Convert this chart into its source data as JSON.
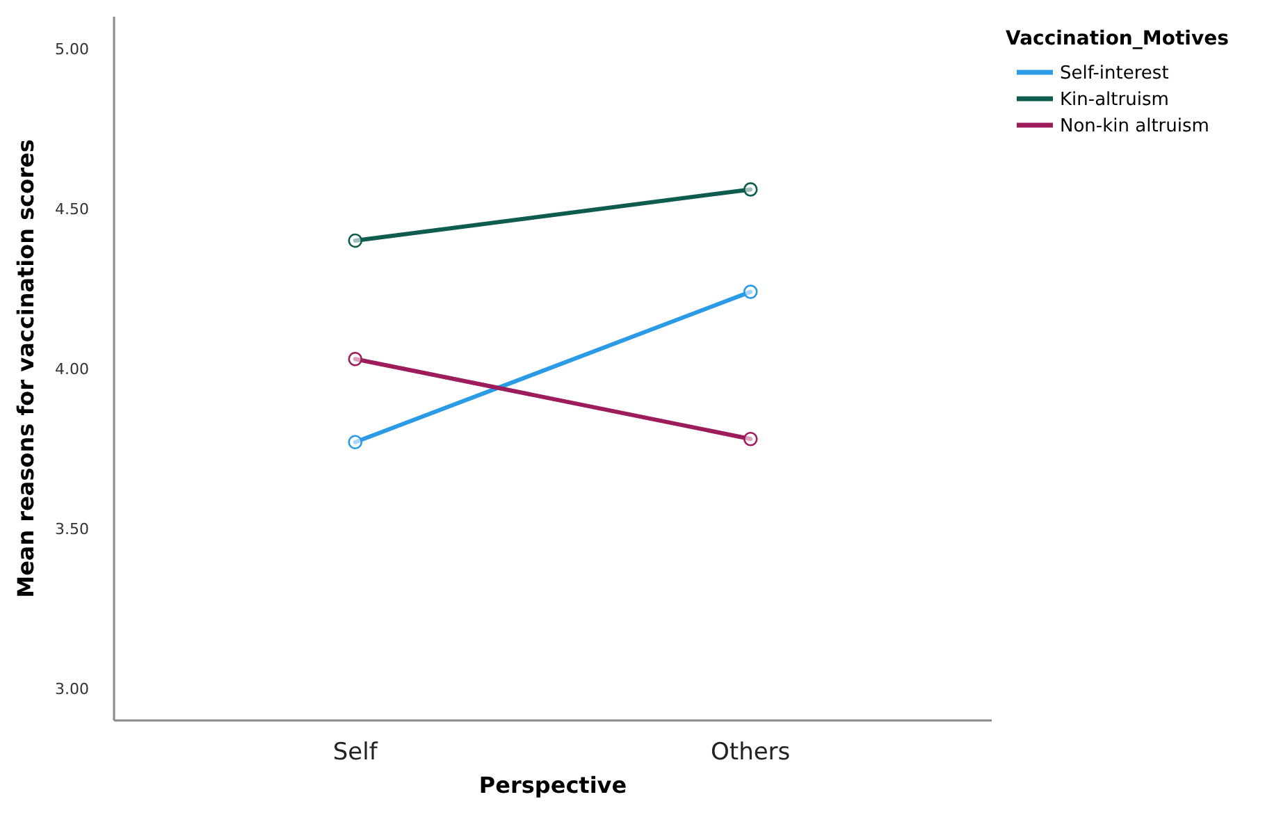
{
  "chart_data": {
    "type": "line",
    "xlabel": "Perspective",
    "ylabel": "Mean reasons for vaccination scores",
    "legend_title": "Vaccination_Motives",
    "categories": [
      "Self",
      "Others"
    ],
    "series": [
      {
        "name": "Self-interest",
        "color": "#2b9be6",
        "values": [
          3.77,
          4.24
        ]
      },
      {
        "name": "Kin-altruism",
        "color": "#0e5c4e",
        "values": [
          4.4,
          4.56
        ]
      },
      {
        "name": "Non-kin altruism",
        "color": "#9c1c5c",
        "values": [
          4.03,
          3.78
        ]
      }
    ],
    "ylim": [
      2.9,
      5.1
    ],
    "yticks": [
      {
        "value": 3,
        "label": "3.00"
      },
      {
        "value": 3.5,
        "label": "3.50"
      },
      {
        "value": 4,
        "label": "4.00"
      },
      {
        "value": 4.5,
        "label": "4.50"
      },
      {
        "value": 5,
        "label": "5.00"
      }
    ],
    "grid": false,
    "legend": "top right",
    "marker": "circle",
    "line_style": "solid"
  }
}
